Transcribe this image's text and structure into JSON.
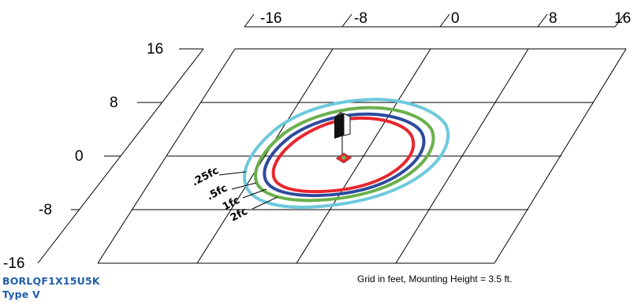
{
  "x_ticks": [
    "-16",
    "-8",
    "0",
    "8",
    "16"
  ],
  "y_ticks": [
    "16",
    "8",
    "0",
    "-8",
    "-16"
  ],
  "isolines": [
    {
      "label": ".25fc",
      "color": "#6ec9dc"
    },
    {
      "label": ".5fc",
      "color": "#6ab04c"
    },
    {
      "label": "1fc",
      "color": "#2e4a9e"
    },
    {
      "label": "2fc",
      "color": "#e8262c"
    }
  ],
  "product": {
    "catalog": "BORLQF1X15U5K",
    "type": "Type V"
  },
  "note": "Grid in feet, Mounting Height = 3.5 ft.",
  "colors": {
    "grid": "#000000",
    "fixture": "#111111",
    "product_text": "#1f5fa8"
  }
}
